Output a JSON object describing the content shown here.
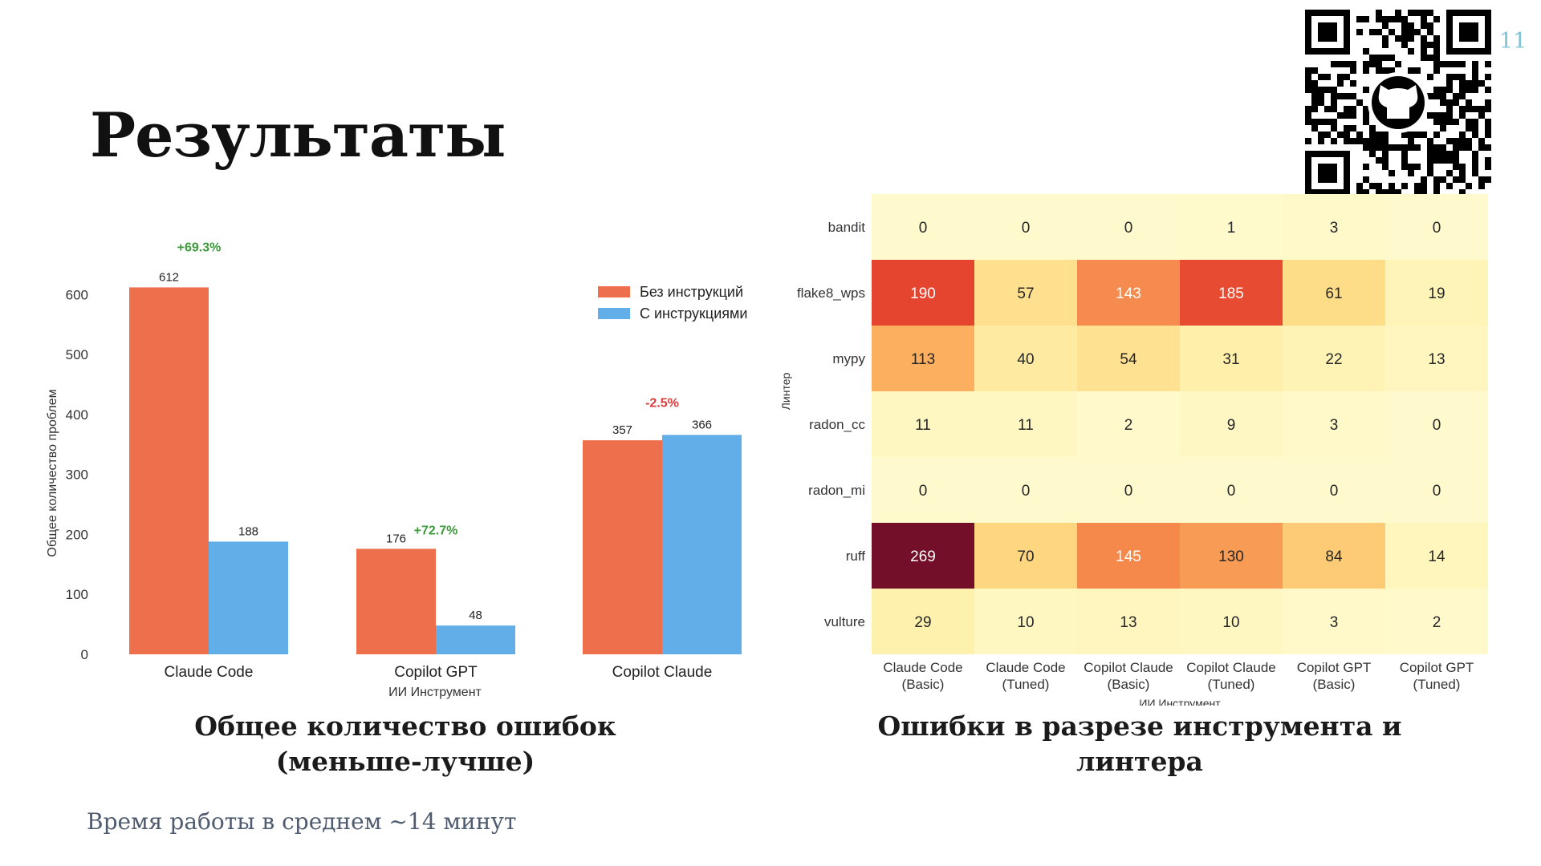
{
  "slide": {
    "page_number": "11",
    "title": "Результаты",
    "footnote": "Время работы в среднем ~14 минут"
  },
  "captions": {
    "left": "Общее количество ошибок (меньше-лучше)",
    "right": "Ошибки в разрезе инструмента и линтера"
  },
  "qr": {
    "icon": "github-icon"
  },
  "chart_data": [
    {
      "type": "bar",
      "categories": [
        "Claude Code",
        "Copilot GPT",
        "Copilot Claude"
      ],
      "series": [
        {
          "name": "Без инструкций",
          "values": [
            612,
            176,
            357
          ],
          "color": "#ee6f4b"
        },
        {
          "name": "С инструкциями",
          "values": [
            188,
            48,
            366
          ],
          "color": "#62aee8"
        }
      ],
      "annotations": [
        {
          "text": "+69.3%",
          "category": "Claude Code",
          "color": "#3d9a3d"
        },
        {
          "text": "+72.7%",
          "category": "Copilot GPT",
          "color": "#3d9a3d"
        },
        {
          "text": "-2.5%",
          "category": "Copilot Claude",
          "color": "#d93b3b"
        }
      ],
      "xlabel": "ИИ Инструмент",
      "ylabel": "Общее количество проблем",
      "ylim": [
        0,
        650
      ],
      "yticks": [
        0,
        100,
        200,
        300,
        400,
        500,
        600
      ],
      "legend": "top-right",
      "grid": false
    },
    {
      "type": "heatmap",
      "rows": [
        "bandit",
        "flake8_wps",
        "mypy",
        "radon_cc",
        "radon_mi",
        "ruff",
        "vulture"
      ],
      "columns": [
        "Claude Code (Basic)",
        "Claude Code (Tuned)",
        "Copilot Claude (Basic)",
        "Copilot Claude (Tuned)",
        "Copilot GPT (Basic)",
        "Copilot GPT (Tuned)"
      ],
      "values": [
        [
          0,
          0,
          0,
          1,
          3,
          0
        ],
        [
          190,
          57,
          143,
          185,
          61,
          19
        ],
        [
          113,
          40,
          54,
          31,
          22,
          13
        ],
        [
          11,
          11,
          2,
          9,
          3,
          0
        ],
        [
          0,
          0,
          0,
          0,
          0,
          0
        ],
        [
          269,
          70,
          145,
          130,
          84,
          14
        ],
        [
          29,
          10,
          13,
          10,
          3,
          2
        ]
      ],
      "xlabel": "ИИ Инструмент",
      "ylabel": "Линтер",
      "colormap": "YlOrRd",
      "value_range": [
        0,
        269
      ]
    }
  ]
}
